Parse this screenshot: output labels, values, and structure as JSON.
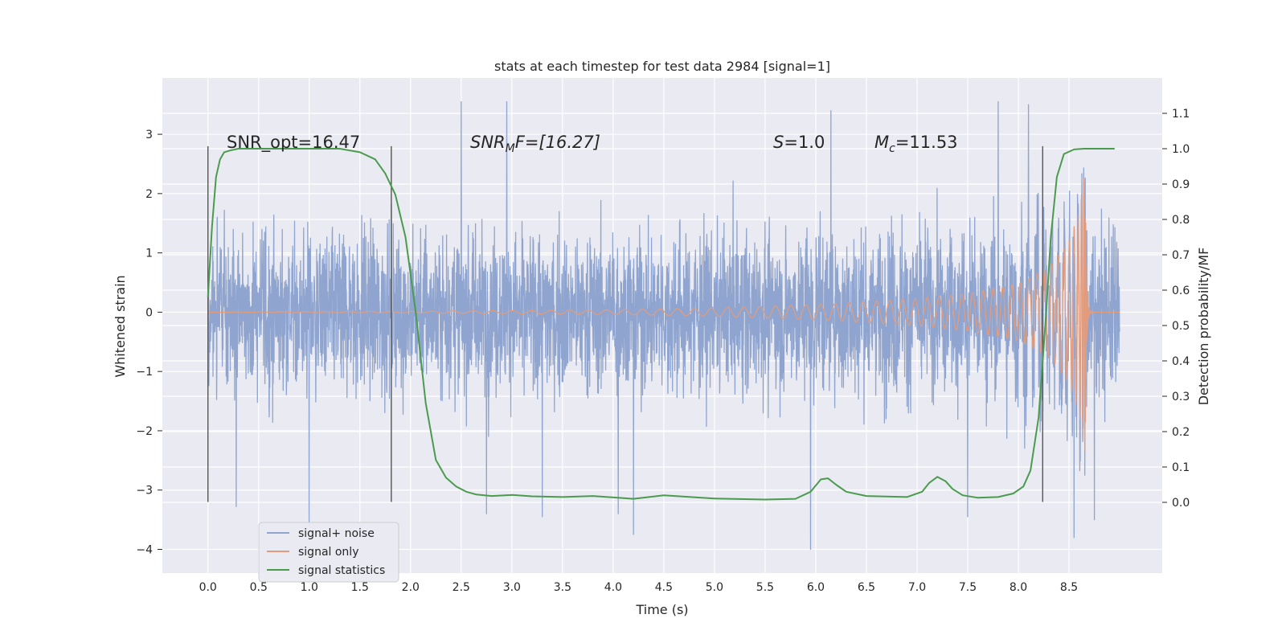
{
  "chart_data": {
    "type": "line",
    "title": "stats at each timestep for test data 2984 [signal=1]",
    "xlabel": "Time (s)",
    "ylabel": "Whitened strain",
    "y2label": "Detection probability/MF",
    "xlim": [
      -0.45,
      9.42
    ],
    "ylim": [
      -4.4,
      3.95
    ],
    "y2lim": [
      -0.2,
      1.2
    ],
    "x_ticks": [
      0.0,
      0.5,
      1.0,
      1.5,
      2.0,
      2.5,
      3.0,
      3.5,
      4.0,
      4.5,
      5.0,
      5.5,
      6.0,
      6.5,
      7.0,
      7.5,
      8.0,
      8.5
    ],
    "x_tick_labels": [
      "0.0",
      "0.5",
      "1.0",
      "1.5",
      "2.0",
      "2.5",
      "3.0",
      "3.5",
      "4.0",
      "4.5",
      "5.0",
      "5.5",
      "6.0",
      "6.5",
      "7.0",
      "7.5",
      "8.0",
      "8.5"
    ],
    "y_ticks": [
      -4,
      -3,
      -2,
      -1,
      0,
      1,
      2,
      3
    ],
    "y_tick_labels": [
      "−4",
      "−3",
      "−2",
      "−1",
      "0",
      "1",
      "2",
      "3"
    ],
    "y2_ticks": [
      0.0,
      0.1,
      0.2,
      0.3,
      0.4,
      0.5,
      0.6,
      0.7,
      0.8,
      0.9,
      1.0,
      1.1
    ],
    "y2_tick_labels": [
      "0.0",
      "0.1",
      "0.2",
      "0.3",
      "0.4",
      "0.5",
      "0.6",
      "0.7",
      "0.8",
      "0.9",
      "1.0",
      "1.1"
    ],
    "grid": true,
    "legend_position": "lower-left",
    "annotations": {
      "snr_opt": "SNR_opt=16.47",
      "snr_mf_main": "SNR",
      "snr_mf_sub": "M",
      "snr_mf_rest": "F=[16.27]",
      "s_main": "S",
      "s_rest": "=1.0",
      "mc_main": "M",
      "mc_sub": "c",
      "mc_rest": "=11.53"
    },
    "vertical_markers": [
      0.0,
      1.81,
      8.24
    ],
    "vertical_marker_range": [
      -3.2,
      2.8
    ],
    "series": [
      {
        "name": "signal+ noise",
        "color": "#8fa5cf",
        "duration": 9.0,
        "amplitude_typical": 1.5,
        "extremes": [
          [
            0.28,
            -3.28
          ],
          [
            1.0,
            -3.6
          ],
          [
            2.5,
            3.55
          ],
          [
            2.75,
            -3.4
          ],
          [
            2.95,
            3.55
          ],
          [
            3.3,
            -3.45
          ],
          [
            4.05,
            -3.4
          ],
          [
            4.2,
            -3.75
          ],
          [
            5.95,
            -4.0
          ],
          [
            6.15,
            3.4
          ],
          [
            7.5,
            -3.45
          ],
          [
            7.8,
            3.55
          ],
          [
            8.1,
            3.5
          ],
          [
            8.55,
            -3.8
          ],
          [
            8.75,
            -3.5
          ]
        ]
      },
      {
        "name": "signal only",
        "color": "#e19c7e",
        "merger_time": 8.66,
        "peak_amplitude": 2.45,
        "envelope": [
          [
            0.0,
            0.0
          ],
          [
            2.0,
            0.015
          ],
          [
            4.0,
            0.04
          ],
          [
            5.0,
            0.07
          ],
          [
            6.0,
            0.13
          ],
          [
            6.5,
            0.18
          ],
          [
            7.0,
            0.23
          ],
          [
            7.5,
            0.32
          ],
          [
            8.0,
            0.48
          ],
          [
            8.3,
            0.75
          ],
          [
            8.5,
            1.2
          ],
          [
            8.6,
            1.7
          ],
          [
            8.66,
            2.45
          ]
        ]
      },
      {
        "name": "signal statistics",
        "color": "#4b9b4f",
        "x": [
          0.0,
          0.04,
          0.08,
          0.12,
          0.16,
          0.22,
          0.3,
          0.5,
          1.0,
          1.3,
          1.5,
          1.65,
          1.75,
          1.85,
          1.95,
          2.05,
          2.15,
          2.25,
          2.35,
          2.45,
          2.55,
          2.65,
          2.8,
          3.0,
          3.2,
          3.5,
          3.8,
          4.2,
          4.5,
          5.0,
          5.5,
          5.8,
          5.95,
          6.05,
          6.12,
          6.2,
          6.3,
          6.5,
          6.9,
          7.05,
          7.12,
          7.2,
          7.28,
          7.35,
          7.45,
          7.6,
          7.8,
          7.95,
          8.05,
          8.12,
          8.2,
          8.27,
          8.32,
          8.38,
          8.45,
          8.55,
          8.65,
          8.75,
          8.95
        ],
        "y": [
          0.58,
          0.78,
          0.92,
          0.97,
          0.99,
          0.995,
          1.0,
          1.0,
          1.0,
          1.0,
          0.99,
          0.97,
          0.93,
          0.87,
          0.75,
          0.54,
          0.28,
          0.12,
          0.07,
          0.045,
          0.03,
          0.022,
          0.018,
          0.021,
          0.017,
          0.015,
          0.018,
          0.01,
          0.02,
          0.011,
          0.008,
          0.01,
          0.03,
          0.065,
          0.068,
          0.05,
          0.03,
          0.018,
          0.015,
          0.03,
          0.055,
          0.072,
          0.06,
          0.038,
          0.02,
          0.013,
          0.015,
          0.025,
          0.045,
          0.09,
          0.24,
          0.52,
          0.75,
          0.92,
          0.985,
          0.998,
          1.0,
          1.0,
          1.0
        ]
      }
    ]
  }
}
